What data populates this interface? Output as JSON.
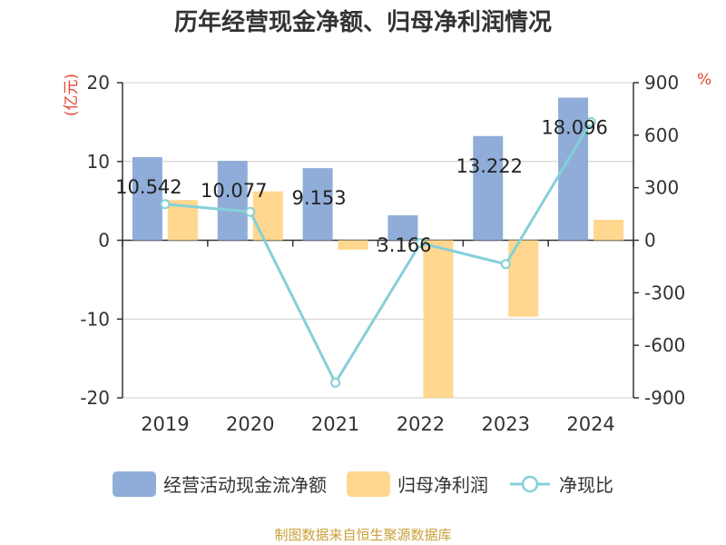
{
  "chart_data": {
    "type": "bar+line",
    "title": "历年经营现金净额、归母净利润情况",
    "left_unit": "(亿元)",
    "right_unit": "%",
    "categories": [
      "2019",
      "2020",
      "2021",
      "2022",
      "2023",
      "2024"
    ],
    "series": [
      {
        "name": "经营活动现金流净额",
        "type": "bar",
        "axis": "left",
        "color": "#8fadd8",
        "values": [
          10.542,
          10.077,
          9.153,
          3.166,
          13.222,
          18.096
        ],
        "labels": [
          "10.542",
          "10.077",
          "9.153",
          "3.166",
          "13.222",
          "18.096"
        ]
      },
      {
        "name": "归母净利润",
        "type": "bar",
        "axis": "left",
        "color": "#ffd78e",
        "values": [
          5.1,
          6.2,
          -1.2,
          -20.0,
          -9.7,
          2.6
        ]
      },
      {
        "name": "净现比",
        "type": "line",
        "axis": "right",
        "color": "#85d0d8",
        "values": [
          206,
          162,
          -814,
          -16,
          -136,
          675
        ]
      }
    ],
    "left_axis": {
      "ticks": [
        "20",
        "10",
        "0",
        "-10",
        "-20"
      ],
      "range": [
        -20,
        20
      ]
    },
    "right_axis": {
      "ticks": [
        "900",
        "600",
        "300",
        "0",
        "-300",
        "-600",
        "-900"
      ],
      "range": [
        -900,
        900
      ]
    },
    "grid": true,
    "legend_position": "bottom"
  },
  "source": "制图数据来自恒生聚源数据库"
}
